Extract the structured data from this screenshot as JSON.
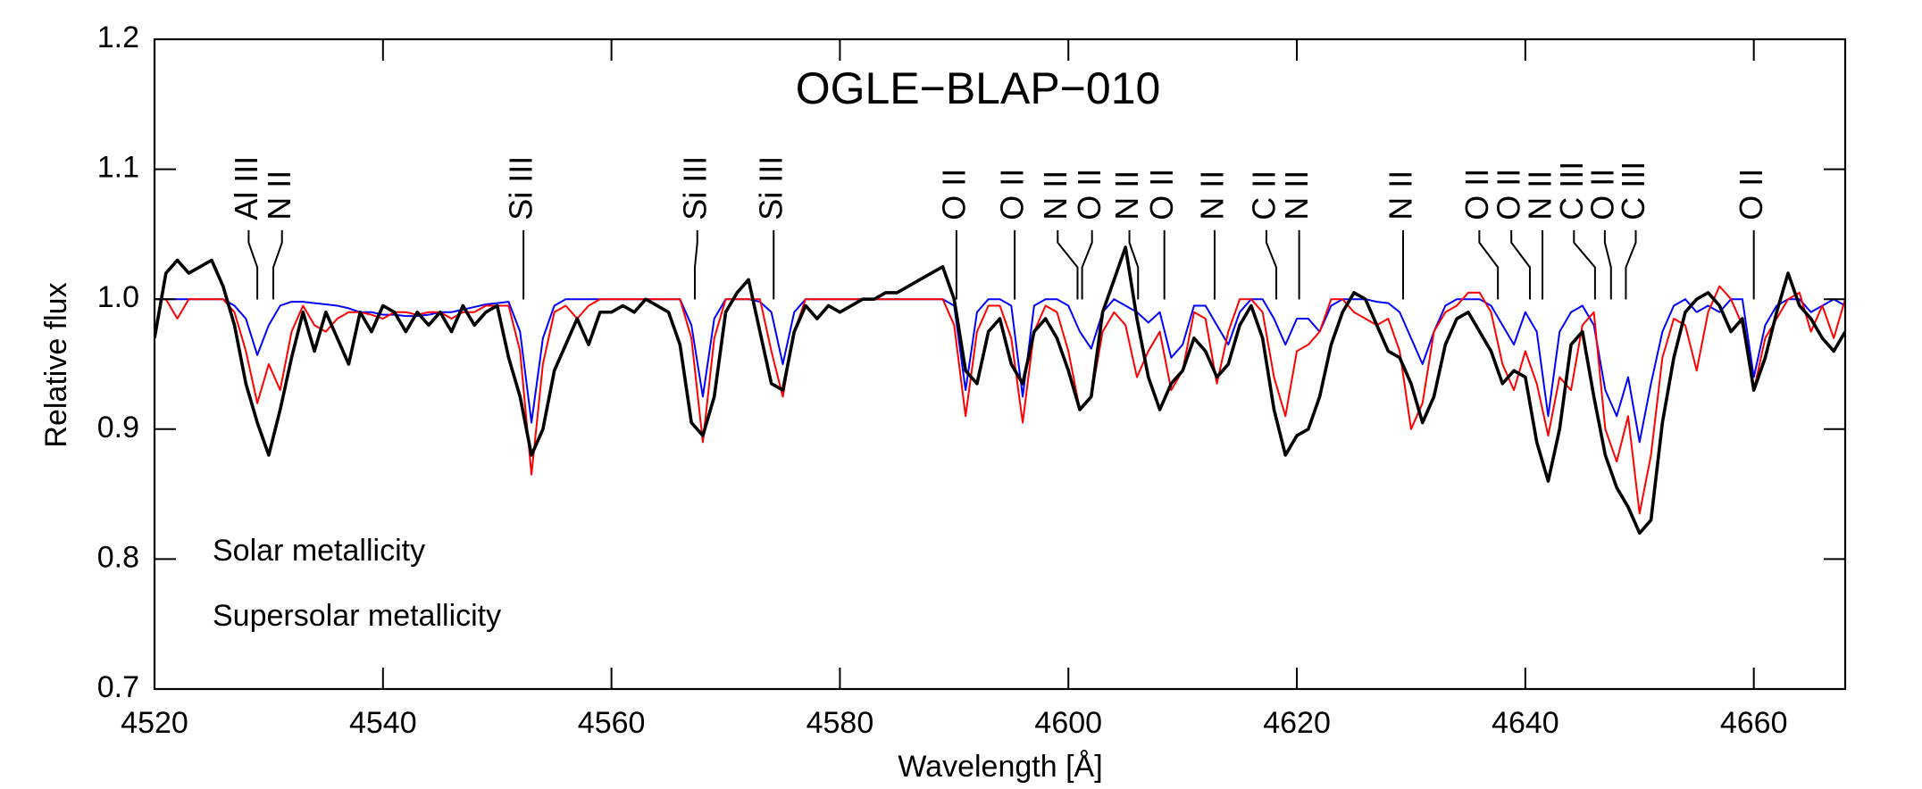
{
  "chart_data": {
    "type": "line",
    "title": "OGLE−BLAP−010",
    "xlabel": "Wavelength [Å]",
    "ylabel": "Relative flux",
    "xlim": [
      4520,
      4668
    ],
    "ylim": [
      0.7,
      1.2
    ],
    "xticks": [
      4520,
      4540,
      4560,
      4580,
      4600,
      4620,
      4640,
      4660
    ],
    "yticks": [
      0.7,
      0.8,
      0.9,
      {
        "value": 1,
        "label": "1.0"
      },
      1.1,
      1.2
    ],
    "x": [
      4520,
      4521,
      4522,
      4523,
      4524,
      4525,
      4526,
      4527,
      4528,
      4529,
      4530,
      4531,
      4532,
      4533,
      4534,
      4535,
      4536,
      4537,
      4538,
      4539,
      4540,
      4541,
      4542,
      4543,
      4544,
      4545,
      4546,
      4547,
      4548,
      4549,
      4550,
      4551,
      4552,
      4553,
      4554,
      4555,
      4556,
      4557,
      4558,
      4559,
      4560,
      4561,
      4562,
      4563,
      4564,
      4565,
      4566,
      4567,
      4568,
      4569,
      4570,
      4571,
      4572,
      4573,
      4574,
      4575,
      4576,
      4577,
      4578,
      4579,
      4580,
      4581,
      4582,
      4583,
      4584,
      4585,
      4586,
      4587,
      4588,
      4589,
      4590,
      4591,
      4592,
      4593,
      4594,
      4595,
      4596,
      4597,
      4598,
      4599,
      4600,
      4601,
      4602,
      4603,
      4604,
      4605,
      4606,
      4607,
      4608,
      4609,
      4610,
      4611,
      4612,
      4613,
      4614,
      4615,
      4616,
      4617,
      4618,
      4619,
      4620,
      4621,
      4622,
      4623,
      4624,
      4625,
      4626,
      4627,
      4628,
      4629,
      4630,
      4631,
      4632,
      4633,
      4634,
      4635,
      4636,
      4637,
      4638,
      4639,
      4640,
      4641,
      4642,
      4643,
      4644,
      4645,
      4646,
      4647,
      4648,
      4649,
      4650,
      4651,
      4652,
      4653,
      4654,
      4655,
      4656,
      4657,
      4658,
      4659,
      4660,
      4661,
      4662,
      4663,
      4664,
      4665,
      4666,
      4667,
      4668
    ],
    "series": [
      {
        "color": "#000000",
        "values": [
          0.97,
          1.02,
          1.03,
          1.02,
          1.025,
          1.03,
          1.01,
          0.98,
          0.935,
          0.905,
          0.88,
          0.915,
          0.955,
          0.99,
          0.96,
          0.99,
          0.97,
          0.95,
          0.99,
          0.975,
          0.995,
          0.99,
          0.975,
          0.99,
          0.98,
          0.99,
          0.975,
          0.995,
          0.98,
          0.99,
          0.995,
          0.955,
          0.925,
          0.88,
          0.9,
          0.945,
          0.965,
          0.985,
          0.965,
          0.99,
          0.99,
          0.995,
          0.99,
          1.0,
          0.995,
          0.99,
          0.965,
          0.905,
          0.895,
          0.925,
          0.99,
          1.005,
          1.015,
          0.975,
          0.935,
          0.93,
          0.975,
          0.995,
          0.985,
          0.995,
          0.99,
          0.995,
          1.0,
          1.0,
          1.005,
          1.005,
          1.01,
          1.015,
          1.02,
          1.025,
          1.0,
          0.945,
          0.935,
          0.975,
          0.985,
          0.95,
          0.935,
          0.975,
          0.985,
          0.97,
          0.945,
          0.915,
          0.925,
          0.99,
          1.015,
          1.04,
          0.985,
          0.94,
          0.915,
          0.935,
          0.945,
          0.97,
          0.96,
          0.94,
          0.95,
          0.98,
          0.995,
          0.97,
          0.915,
          0.88,
          0.895,
          0.9,
          0.925,
          0.965,
          0.99,
          1.005,
          1.0,
          0.98,
          0.96,
          0.955,
          0.935,
          0.905,
          0.925,
          0.965,
          0.985,
          0.99,
          0.975,
          0.96,
          0.935,
          0.945,
          0.94,
          0.89,
          0.86,
          0.9,
          0.965,
          0.975,
          0.925,
          0.88,
          0.855,
          0.84,
          0.82,
          0.83,
          0.905,
          0.955,
          0.99,
          1.0,
          1.005,
          0.995,
          0.975,
          0.985,
          0.93,
          0.955,
          0.99,
          1.02,
          0.995,
          0.985,
          0.97,
          0.96,
          0.975
        ]
      },
      {
        "name": "Solar metallicity",
        "color": "#0000ff",
        "values": [
          1.0,
          1.0,
          1.0,
          1.0,
          1.0,
          1.0,
          1.0,
          0.995,
          0.985,
          0.957,
          0.98,
          0.995,
          0.998,
          0.998,
          0.997,
          0.996,
          0.995,
          0.993,
          0.99,
          0.99,
          0.988,
          0.988,
          0.987,
          0.987,
          0.988,
          0.99,
          0.99,
          0.992,
          0.994,
          0.996,
          0.997,
          0.998,
          0.975,
          0.905,
          0.97,
          0.995,
          1.0,
          1.0,
          1.0,
          1.0,
          1.0,
          1.0,
          1.0,
          1.0,
          1.0,
          1.0,
          1.0,
          0.98,
          0.925,
          0.985,
          1.0,
          1.0,
          1.0,
          0.998,
          0.99,
          0.95,
          0.99,
          1.0,
          1.0,
          1.0,
          1.0,
          1.0,
          1.0,
          1.0,
          1.0,
          1.0,
          1.0,
          1.0,
          1.0,
          1.0,
          0.995,
          0.93,
          0.99,
          1.0,
          1.0,
          0.995,
          0.925,
          0.995,
          1.0,
          1.0,
          0.995,
          0.975,
          0.962,
          0.99,
          1.0,
          0.995,
          0.99,
          0.982,
          0.99,
          0.955,
          0.965,
          0.995,
          0.995,
          0.98,
          0.965,
          0.99,
          1.0,
          1.0,
          0.985,
          0.965,
          0.985,
          0.985,
          0.975,
          0.995,
          1.0,
          1.0,
          1.0,
          0.998,
          0.997,
          0.99,
          0.97,
          0.95,
          0.975,
          0.995,
          1.0,
          1.0,
          1.0,
          0.995,
          0.98,
          0.965,
          0.99,
          0.975,
          0.91,
          0.975,
          0.99,
          0.995,
          0.98,
          0.93,
          0.91,
          0.94,
          0.89,
          0.935,
          0.975,
          0.995,
          1.0,
          0.99,
          0.995,
          0.99,
          1.0,
          1.0,
          0.94,
          0.98,
          0.995,
          1.0,
          1.0,
          0.99,
          0.995,
          1.0,
          0.995
        ]
      },
      {
        "name": "Supersolar metallicity",
        "color": "#ff0000",
        "values": [
          1.0,
          1.0,
          0.985,
          1.0,
          1.0,
          1.0,
          1.0,
          0.99,
          0.96,
          0.92,
          0.95,
          0.93,
          0.975,
          0.995,
          0.98,
          0.975,
          0.985,
          0.99,
          0.99,
          0.988,
          0.985,
          0.99,
          0.99,
          0.988,
          0.99,
          0.99,
          0.985,
          0.99,
          0.99,
          0.995,
          0.995,
          0.995,
          0.96,
          0.865,
          0.95,
          0.99,
          0.995,
          0.985,
          0.995,
          1.0,
          1.0,
          1.0,
          1.0,
          1.0,
          1.0,
          1.0,
          1.0,
          0.97,
          0.89,
          0.97,
          1.0,
          1.0,
          1.0,
          1.0,
          0.96,
          0.925,
          0.975,
          1.0,
          1.0,
          1.0,
          1.0,
          1.0,
          1.0,
          1.0,
          1.0,
          1.0,
          1.0,
          1.0,
          1.0,
          1.0,
          0.98,
          0.91,
          0.975,
          0.995,
          0.995,
          0.97,
          0.905,
          0.975,
          0.995,
          0.99,
          0.96,
          0.915,
          0.925,
          0.975,
          0.99,
          0.98,
          0.94,
          0.96,
          0.975,
          0.93,
          0.945,
          0.99,
          0.985,
          0.935,
          0.975,
          1.0,
          1.0,
          0.99,
          0.94,
          0.91,
          0.96,
          0.965,
          0.975,
          1.0,
          1.0,
          0.99,
          0.985,
          0.98,
          0.985,
          0.96,
          0.9,
          0.92,
          0.975,
          0.99,
          0.995,
          1.005,
          1.005,
          0.99,
          0.95,
          0.93,
          0.96,
          0.935,
          0.895,
          0.94,
          0.93,
          0.98,
          0.99,
          0.9,
          0.875,
          0.91,
          0.835,
          0.88,
          0.955,
          0.985,
          0.98,
          0.945,
          0.99,
          1.01,
          1.0,
          0.98,
          0.93,
          0.97,
          0.985,
          1.0,
          1.005,
          0.975,
          0.995,
          0.97,
          1.0
        ]
      }
    ],
    "line_ids": [
      {
        "label": "Al III",
        "wavelength": 4529.0
      },
      {
        "label": "N II",
        "wavelength": 4530.4
      },
      {
        "label": "Si III",
        "wavelength": 4552.3
      },
      {
        "label": "Si III",
        "wavelength": 4567.3
      },
      {
        "label": "Si III",
        "wavelength": 4574.2
      },
      {
        "label": "O II",
        "wavelength": 4590.2
      },
      {
        "label": "O II",
        "wavelength": 4595.3
      },
      {
        "label": "N II",
        "wavelength": 4600.8
      },
      {
        "label": "O II",
        "wavelength": 4601.2
      },
      {
        "label": "N II",
        "wavelength": 4606.1
      },
      {
        "label": "O II",
        "wavelength": 4608.4
      },
      {
        "label": "N II",
        "wavelength": 4612.8
      },
      {
        "label": "C II",
        "wavelength": 4618.2
      },
      {
        "label": "N II",
        "wavelength": 4620.2
      },
      {
        "label": "N II",
        "wavelength": 4629.3
      },
      {
        "label": "O II",
        "wavelength": 4637.6
      },
      {
        "label": "O II",
        "wavelength": 4640.4
      },
      {
        "label": "N II",
        "wavelength": 4641.5
      },
      {
        "label": "C III",
        "wavelength": 4646.1
      },
      {
        "label": "O II",
        "wavelength": 4647.5
      },
      {
        "label": "C III",
        "wavelength": 4648.8
      },
      {
        "label": "O II",
        "wavelength": 4660.0
      }
    ]
  }
}
